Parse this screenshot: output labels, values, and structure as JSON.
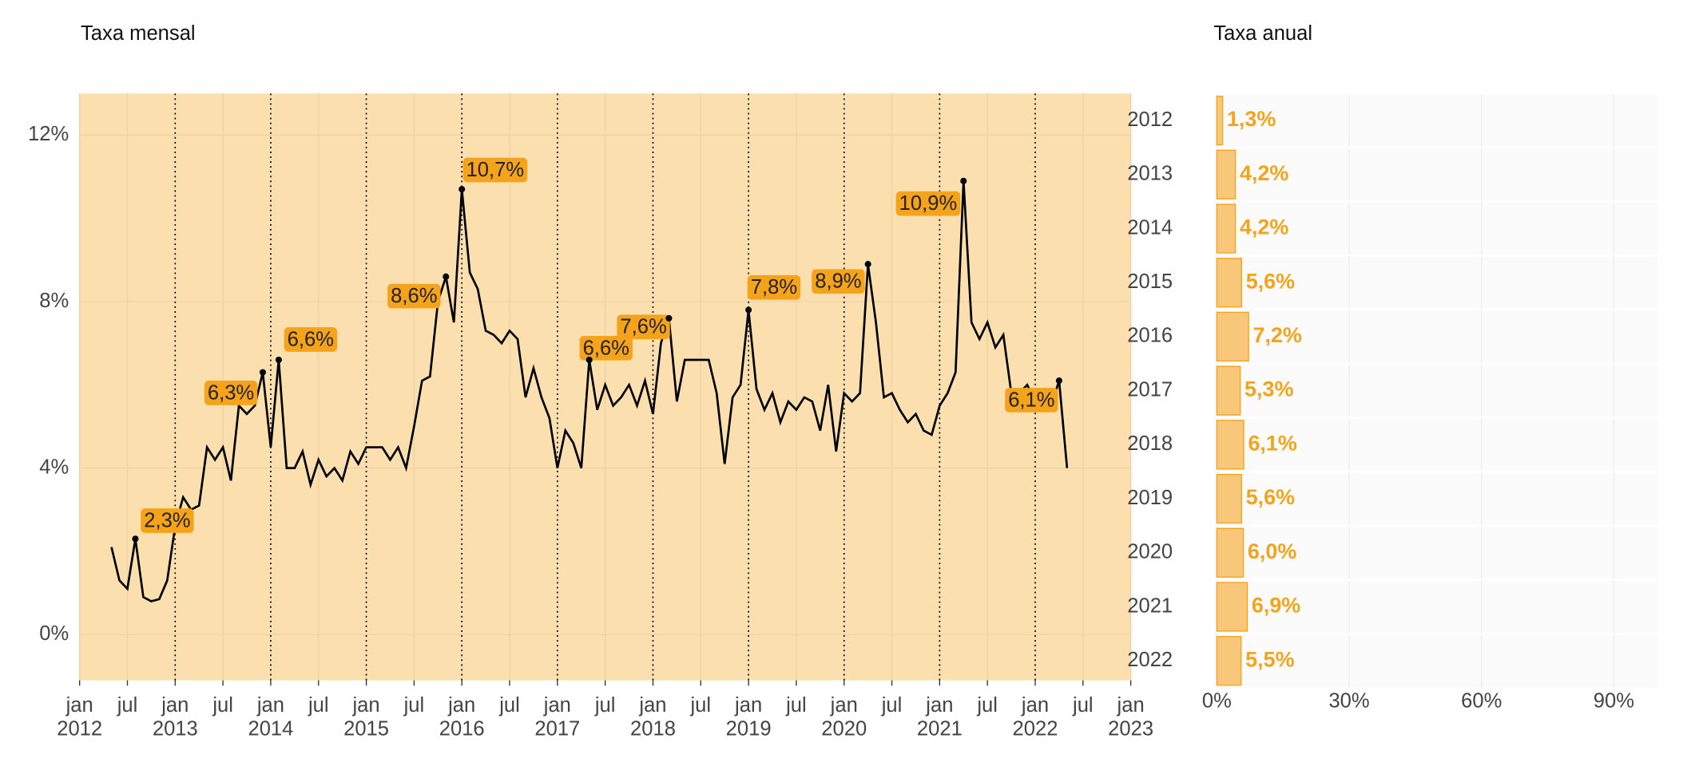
{
  "chart_data": [
    {
      "type": "line",
      "title": "Taxa mensal",
      "color": "#000000",
      "x": [
        "2012-05",
        "2012-06",
        "2012-07",
        "2012-08",
        "2012-09",
        "2012-10",
        "2012-11",
        "2012-12",
        "2013-01",
        "2013-02",
        "2013-03",
        "2013-04",
        "2013-05",
        "2013-06",
        "2013-07",
        "2013-08",
        "2013-09",
        "2013-10",
        "2013-11",
        "2013-12",
        "2014-01",
        "2014-02",
        "2014-03",
        "2014-04",
        "2014-05",
        "2014-06",
        "2014-07",
        "2014-08",
        "2014-09",
        "2014-10",
        "2014-11",
        "2014-12",
        "2015-01",
        "2015-02",
        "2015-03",
        "2015-04",
        "2015-05",
        "2015-06",
        "2015-07",
        "2015-08",
        "2015-09",
        "2015-10",
        "2015-11",
        "2015-12",
        "2016-01",
        "2016-02",
        "2016-03",
        "2016-04",
        "2016-05",
        "2016-06",
        "2016-07",
        "2016-08",
        "2016-09",
        "2016-10",
        "2016-11",
        "2016-12",
        "2017-01",
        "2017-02",
        "2017-03",
        "2017-04",
        "2017-05",
        "2017-06",
        "2017-07",
        "2017-08",
        "2017-09",
        "2017-10",
        "2017-11",
        "2017-12",
        "2018-01",
        "2018-02",
        "2018-03",
        "2018-04",
        "2018-05",
        "2018-06",
        "2018-07",
        "2018-08",
        "2018-09",
        "2018-10",
        "2018-11",
        "2018-12",
        "2019-01",
        "2019-02",
        "2019-03",
        "2019-04",
        "2019-05",
        "2019-06",
        "2019-07",
        "2019-08",
        "2019-09",
        "2019-10",
        "2019-11",
        "2019-12",
        "2020-01",
        "2020-02",
        "2020-03",
        "2020-04",
        "2020-05",
        "2020-06",
        "2020-07",
        "2020-08",
        "2020-09",
        "2020-10",
        "2020-11",
        "2020-12",
        "2021-01",
        "2021-02",
        "2021-03",
        "2021-04",
        "2021-05",
        "2021-06",
        "2021-07",
        "2021-08",
        "2021-09",
        "2021-10",
        "2021-11",
        "2021-12",
        "2022-01",
        "2022-02",
        "2022-03",
        "2022-04",
        "2022-05"
      ],
      "values": [
        2.1,
        1.3,
        1.1,
        2.3,
        0.9,
        0.8,
        0.85,
        1.3,
        2.6,
        3.3,
        3.0,
        3.1,
        4.5,
        4.2,
        4.5,
        3.7,
        5.5,
        5.3,
        5.5,
        6.3,
        4.5,
        6.6,
        4.0,
        4.0,
        4.4,
        3.6,
        4.2,
        3.8,
        4.0,
        3.7,
        4.4,
        4.1,
        4.5,
        4.5,
        4.5,
        4.2,
        4.5,
        4.0,
        5.0,
        6.1,
        6.2,
        8.0,
        8.6,
        7.5,
        10.7,
        8.7,
        8.3,
        7.3,
        7.2,
        7.0,
        7.3,
        7.1,
        5.7,
        6.4,
        5.7,
        5.2,
        4.0,
        4.9,
        4.6,
        4.0,
        6.6,
        5.4,
        6.0,
        5.5,
        5.7,
        6.0,
        5.5,
        6.1,
        5.3,
        7.0,
        7.6,
        5.6,
        6.6,
        6.6,
        6.6,
        6.6,
        5.8,
        4.1,
        5.7,
        6.0,
        7.8,
        5.9,
        5.4,
        5.8,
        5.1,
        5.6,
        5.4,
        5.7,
        5.6,
        4.9,
        6.0,
        4.4,
        5.8,
        5.6,
        5.8,
        8.9,
        7.5,
        5.7,
        5.8,
        5.4,
        5.1,
        5.3,
        4.9,
        4.8,
        5.5,
        5.8,
        6.3,
        10.9,
        7.5,
        7.1,
        7.5,
        6.9,
        7.2,
        5.8,
        5.8,
        6.0,
        5.6,
        5.4,
        5.5,
        6.1,
        4.0
      ],
      "annotations": [
        {
          "x": "2012-08",
          "value": 2.3,
          "label": "2,3%"
        },
        {
          "x": "2013-12",
          "value": 6.3,
          "label": "6,3%"
        },
        {
          "x": "2014-02",
          "value": 6.6,
          "label": "6,6%"
        },
        {
          "x": "2015-11",
          "value": 8.6,
          "label": "8,6%"
        },
        {
          "x": "2016-01",
          "value": 10.7,
          "label": "10,7%"
        },
        {
          "x": "2017-05",
          "value": 6.6,
          "label": "6,6%"
        },
        {
          "x": "2018-03",
          "value": 7.6,
          "label": "7,6%"
        },
        {
          "x": "2019-01",
          "value": 7.8,
          "label": "7,8%"
        },
        {
          "x": "2020-04",
          "value": 8.9,
          "label": "8,9%"
        },
        {
          "x": "2021-04",
          "value": 10.9,
          "label": "10,9%"
        },
        {
          "x": "2022-04",
          "value": 6.1,
          "label": "6,1%"
        }
      ],
      "xlim": [
        "2012-01",
        "2023-01"
      ],
      "xticks": [
        {
          "value": "2012-01",
          "label": "jan 2012"
        },
        {
          "value": "2012-07",
          "label": "jul"
        },
        {
          "value": "2013-01",
          "label": "jan 2013"
        },
        {
          "value": "2013-07",
          "label": "jul"
        },
        {
          "value": "2014-01",
          "label": "jan 2014"
        },
        {
          "value": "2014-07",
          "label": "jul"
        },
        {
          "value": "2015-01",
          "label": "jan 2015"
        },
        {
          "value": "2015-07",
          "label": "jul"
        },
        {
          "value": "2016-01",
          "label": "jan 2016"
        },
        {
          "value": "2016-07",
          "label": "jul"
        },
        {
          "value": "2017-01",
          "label": "jan 2017"
        },
        {
          "value": "2017-07",
          "label": "jul"
        },
        {
          "value": "2018-01",
          "label": "jan 2018"
        },
        {
          "value": "2018-07",
          "label": "jul"
        },
        {
          "value": "2019-01",
          "label": "jan 2019"
        },
        {
          "value": "2019-07",
          "label": "jul"
        },
        {
          "value": "2020-01",
          "label": "jan 2020"
        },
        {
          "value": "2020-07",
          "label": "jul"
        },
        {
          "value": "2021-01",
          "label": "jan 2021"
        },
        {
          "value": "2021-07",
          "label": "jul"
        },
        {
          "value": "2022-01",
          "label": "jan 2022"
        },
        {
          "value": "2022-07",
          "label": "jul"
        },
        {
          "value": "2023-01",
          "label": "jan 2023"
        }
      ],
      "ylim": [
        -1.1,
        13
      ],
      "yticks": [
        {
          "value": 0,
          "label": "0%"
        },
        {
          "value": 4,
          "label": "4%"
        },
        {
          "value": 8,
          "label": "8%"
        },
        {
          "value": 12,
          "label": "12%"
        }
      ],
      "grid": true
    },
    {
      "type": "hbar",
      "title": "Taxa anual",
      "color": "#f9c77a",
      "categories": [
        "2012",
        "2013",
        "2014",
        "2015",
        "2016",
        "2017",
        "2018",
        "2019",
        "2020",
        "2021",
        "2022"
      ],
      "values": [
        1.3,
        4.2,
        4.2,
        5.6,
        7.2,
        5.3,
        6.1,
        5.6,
        6.0,
        6.9,
        5.5
      ],
      "value_labels": [
        "1,3%",
        "4,2%",
        "4,2%",
        "5,6%",
        "7,2%",
        "5,3%",
        "6,1%",
        "5,6%",
        "6,0%",
        "6,9%",
        "5,5%"
      ],
      "xlim": [
        0,
        100
      ],
      "xticks": [
        {
          "value": 0,
          "label": "0%"
        },
        {
          "value": 30,
          "label": "30%"
        },
        {
          "value": 60,
          "label": "60%"
        },
        {
          "value": 90,
          "label": "90%"
        }
      ],
      "grid": true
    }
  ]
}
